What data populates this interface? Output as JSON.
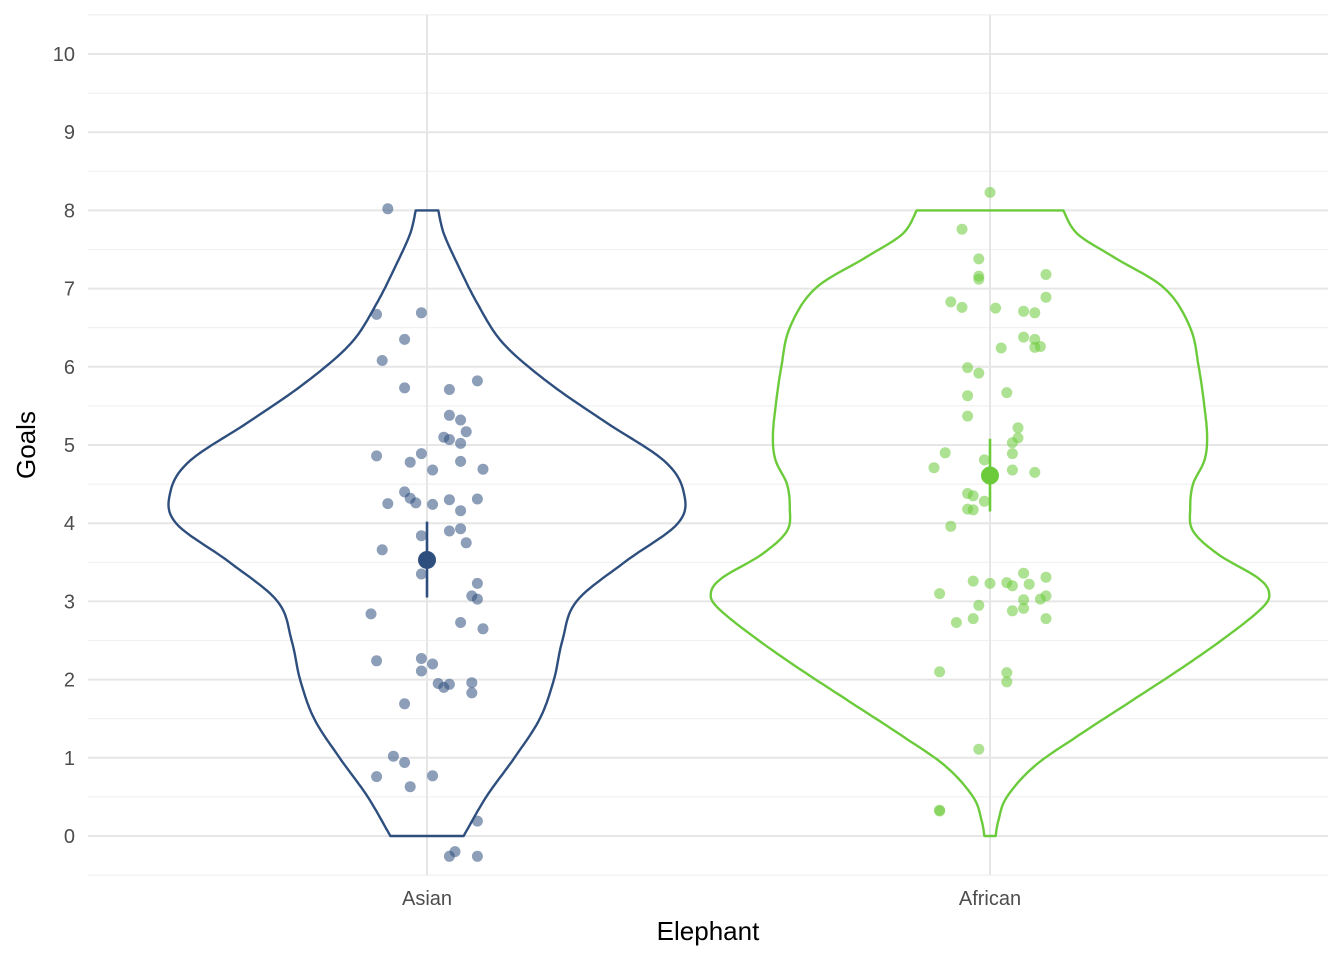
{
  "chart_data": {
    "type": "violin",
    "xlabel": "Elephant",
    "ylabel": "Goals",
    "categories": [
      "Asian",
      "African"
    ],
    "yticks": [
      "0",
      "1",
      "2",
      "3",
      "4",
      "5",
      "6",
      "7",
      "8",
      "9",
      "10"
    ],
    "ylim": [
      -0.5,
      10.5
    ],
    "grid": true,
    "legend": "none",
    "series": [
      {
        "category": "Asian",
        "color": "#2E4F7E",
        "mean": 3.53,
        "ci": [
          3.05,
          4.02
        ],
        "violin_range": [
          0,
          8
        ],
        "violin_density": [
          [
            0,
            0.13
          ],
          [
            0.5,
            0.21
          ],
          [
            1.0,
            0.31
          ],
          [
            1.5,
            0.4
          ],
          [
            2.0,
            0.45
          ],
          [
            2.5,
            0.48
          ],
          [
            3.0,
            0.53
          ],
          [
            3.5,
            0.7
          ],
          [
            4.0,
            0.89
          ],
          [
            4.4,
            0.91
          ],
          [
            4.8,
            0.84
          ],
          [
            5.3,
            0.63
          ],
          [
            5.8,
            0.43
          ],
          [
            6.3,
            0.27
          ],
          [
            6.8,
            0.18
          ],
          [
            7.3,
            0.11
          ],
          [
            7.7,
            0.06
          ],
          [
            8.0,
            0.04
          ]
        ],
        "points": [
          [
            -0.07,
            8.02
          ],
          [
            -0.09,
            6.67
          ],
          [
            -0.01,
            6.69
          ],
          [
            -0.04,
            6.35
          ],
          [
            -0.08,
            6.08
          ],
          [
            -0.04,
            5.73
          ],
          [
            0.04,
            5.71
          ],
          [
            0.09,
            5.82
          ],
          [
            0.04,
            5.38
          ],
          [
            0.06,
            5.32
          ],
          [
            0.07,
            5.17
          ],
          [
            0.03,
            5.1
          ],
          [
            0.04,
            5.07
          ],
          [
            0.06,
            5.02
          ],
          [
            -0.09,
            4.86
          ],
          [
            -0.03,
            4.78
          ],
          [
            -0.01,
            4.89
          ],
          [
            0.06,
            4.79
          ],
          [
            0.01,
            4.68
          ],
          [
            0.1,
            4.69
          ],
          [
            -0.04,
            4.4
          ],
          [
            -0.03,
            4.32
          ],
          [
            -0.07,
            4.25
          ],
          [
            -0.02,
            4.26
          ],
          [
            0.01,
            4.24
          ],
          [
            0.04,
            4.3
          ],
          [
            0.09,
            4.31
          ],
          [
            0.06,
            4.16
          ],
          [
            -0.01,
            3.84
          ],
          [
            0.04,
            3.9
          ],
          [
            0.06,
            3.93
          ],
          [
            0.07,
            3.75
          ],
          [
            -0.08,
            3.66
          ],
          [
            -0.01,
            3.35
          ],
          [
            0.09,
            3.23
          ],
          [
            0.08,
            3.07
          ],
          [
            0.09,
            3.03
          ],
          [
            -0.1,
            2.84
          ],
          [
            0.06,
            2.73
          ],
          [
            0.1,
            2.65
          ],
          [
            -0.09,
            2.24
          ],
          [
            -0.01,
            2.27
          ],
          [
            0.01,
            2.2
          ],
          [
            -0.01,
            2.11
          ],
          [
            0.02,
            1.95
          ],
          [
            0.03,
            1.9
          ],
          [
            0.04,
            1.94
          ],
          [
            0.08,
            1.96
          ],
          [
            0.08,
            1.83
          ],
          [
            -0.04,
            1.69
          ],
          [
            -0.06,
            1.02
          ],
          [
            -0.04,
            0.94
          ],
          [
            -0.09,
            0.76
          ],
          [
            0.01,
            0.77
          ],
          [
            -0.03,
            0.63
          ],
          [
            0.09,
            0.19
          ],
          [
            0.05,
            -0.2
          ],
          [
            0.04,
            -0.26
          ],
          [
            0.09,
            -0.26
          ]
        ]
      },
      {
        "category": "African",
        "color": "#6BCB3B",
        "mean": 4.61,
        "ci": [
          4.15,
          5.08
        ],
        "violin_range": [
          0,
          8
        ],
        "violin_density": [
          [
            0,
            0.02
          ],
          [
            0.2,
            0.03
          ],
          [
            0.5,
            0.06
          ],
          [
            0.9,
            0.16
          ],
          [
            1.3,
            0.32
          ],
          [
            1.7,
            0.49
          ],
          [
            2.1,
            0.66
          ],
          [
            2.5,
            0.82
          ],
          [
            2.9,
            0.96
          ],
          [
            3.1,
            0.99
          ],
          [
            3.3,
            0.95
          ],
          [
            3.6,
            0.81
          ],
          [
            3.9,
            0.72
          ],
          [
            4.2,
            0.71
          ],
          [
            4.5,
            0.72
          ],
          [
            4.8,
            0.76
          ],
          [
            5.1,
            0.77
          ],
          [
            5.5,
            0.76
          ],
          [
            6.0,
            0.74
          ],
          [
            6.5,
            0.71
          ],
          [
            7.0,
            0.62
          ],
          [
            7.4,
            0.44
          ],
          [
            7.7,
            0.31
          ],
          [
            8.0,
            0.26
          ]
        ],
        "points": [
          [
            0.0,
            8.23
          ],
          [
            -0.05,
            7.76
          ],
          [
            -0.02,
            7.38
          ],
          [
            -0.02,
            7.16
          ],
          [
            -0.02,
            7.12
          ],
          [
            0.1,
            7.18
          ],
          [
            0.1,
            6.89
          ],
          [
            -0.07,
            6.83
          ],
          [
            -0.05,
            6.76
          ],
          [
            0.01,
            6.75
          ],
          [
            0.06,
            6.71
          ],
          [
            0.08,
            6.69
          ],
          [
            0.02,
            6.24
          ],
          [
            0.06,
            6.38
          ],
          [
            0.08,
            6.35
          ],
          [
            0.08,
            6.25
          ],
          [
            0.09,
            6.26
          ],
          [
            -0.04,
            5.99
          ],
          [
            -0.02,
            5.92
          ],
          [
            0.03,
            5.67
          ],
          [
            -0.04,
            5.63
          ],
          [
            -0.04,
            5.37
          ],
          [
            0.05,
            5.22
          ],
          [
            0.05,
            5.09
          ],
          [
            0.04,
            5.03
          ],
          [
            -0.08,
            4.9
          ],
          [
            0.04,
            4.89
          ],
          [
            -0.01,
            4.81
          ],
          [
            -0.1,
            4.71
          ],
          [
            0.04,
            4.68
          ],
          [
            0.08,
            4.65
          ],
          [
            -0.04,
            4.38
          ],
          [
            -0.03,
            4.35
          ],
          [
            -0.03,
            4.17
          ],
          [
            -0.04,
            4.18
          ],
          [
            -0.01,
            4.28
          ],
          [
            -0.07,
            3.96
          ],
          [
            0.06,
            3.36
          ],
          [
            -0.03,
            3.26
          ],
          [
            0.0,
            3.23
          ],
          [
            0.03,
            3.24
          ],
          [
            0.04,
            3.2
          ],
          [
            0.07,
            3.22
          ],
          [
            0.1,
            3.31
          ],
          [
            -0.09,
            3.1
          ],
          [
            0.06,
            3.02
          ],
          [
            0.09,
            3.03
          ],
          [
            0.1,
            3.07
          ],
          [
            -0.02,
            2.95
          ],
          [
            0.04,
            2.88
          ],
          [
            0.06,
            2.91
          ],
          [
            -0.06,
            2.73
          ],
          [
            -0.03,
            2.78
          ],
          [
            0.1,
            2.78
          ],
          [
            -0.09,
            2.1
          ],
          [
            0.03,
            2.09
          ],
          [
            0.03,
            1.97
          ],
          [
            -0.02,
            1.11
          ],
          [
            -0.09,
            0.32
          ],
          [
            -0.09,
            0.33
          ]
        ]
      }
    ]
  }
}
